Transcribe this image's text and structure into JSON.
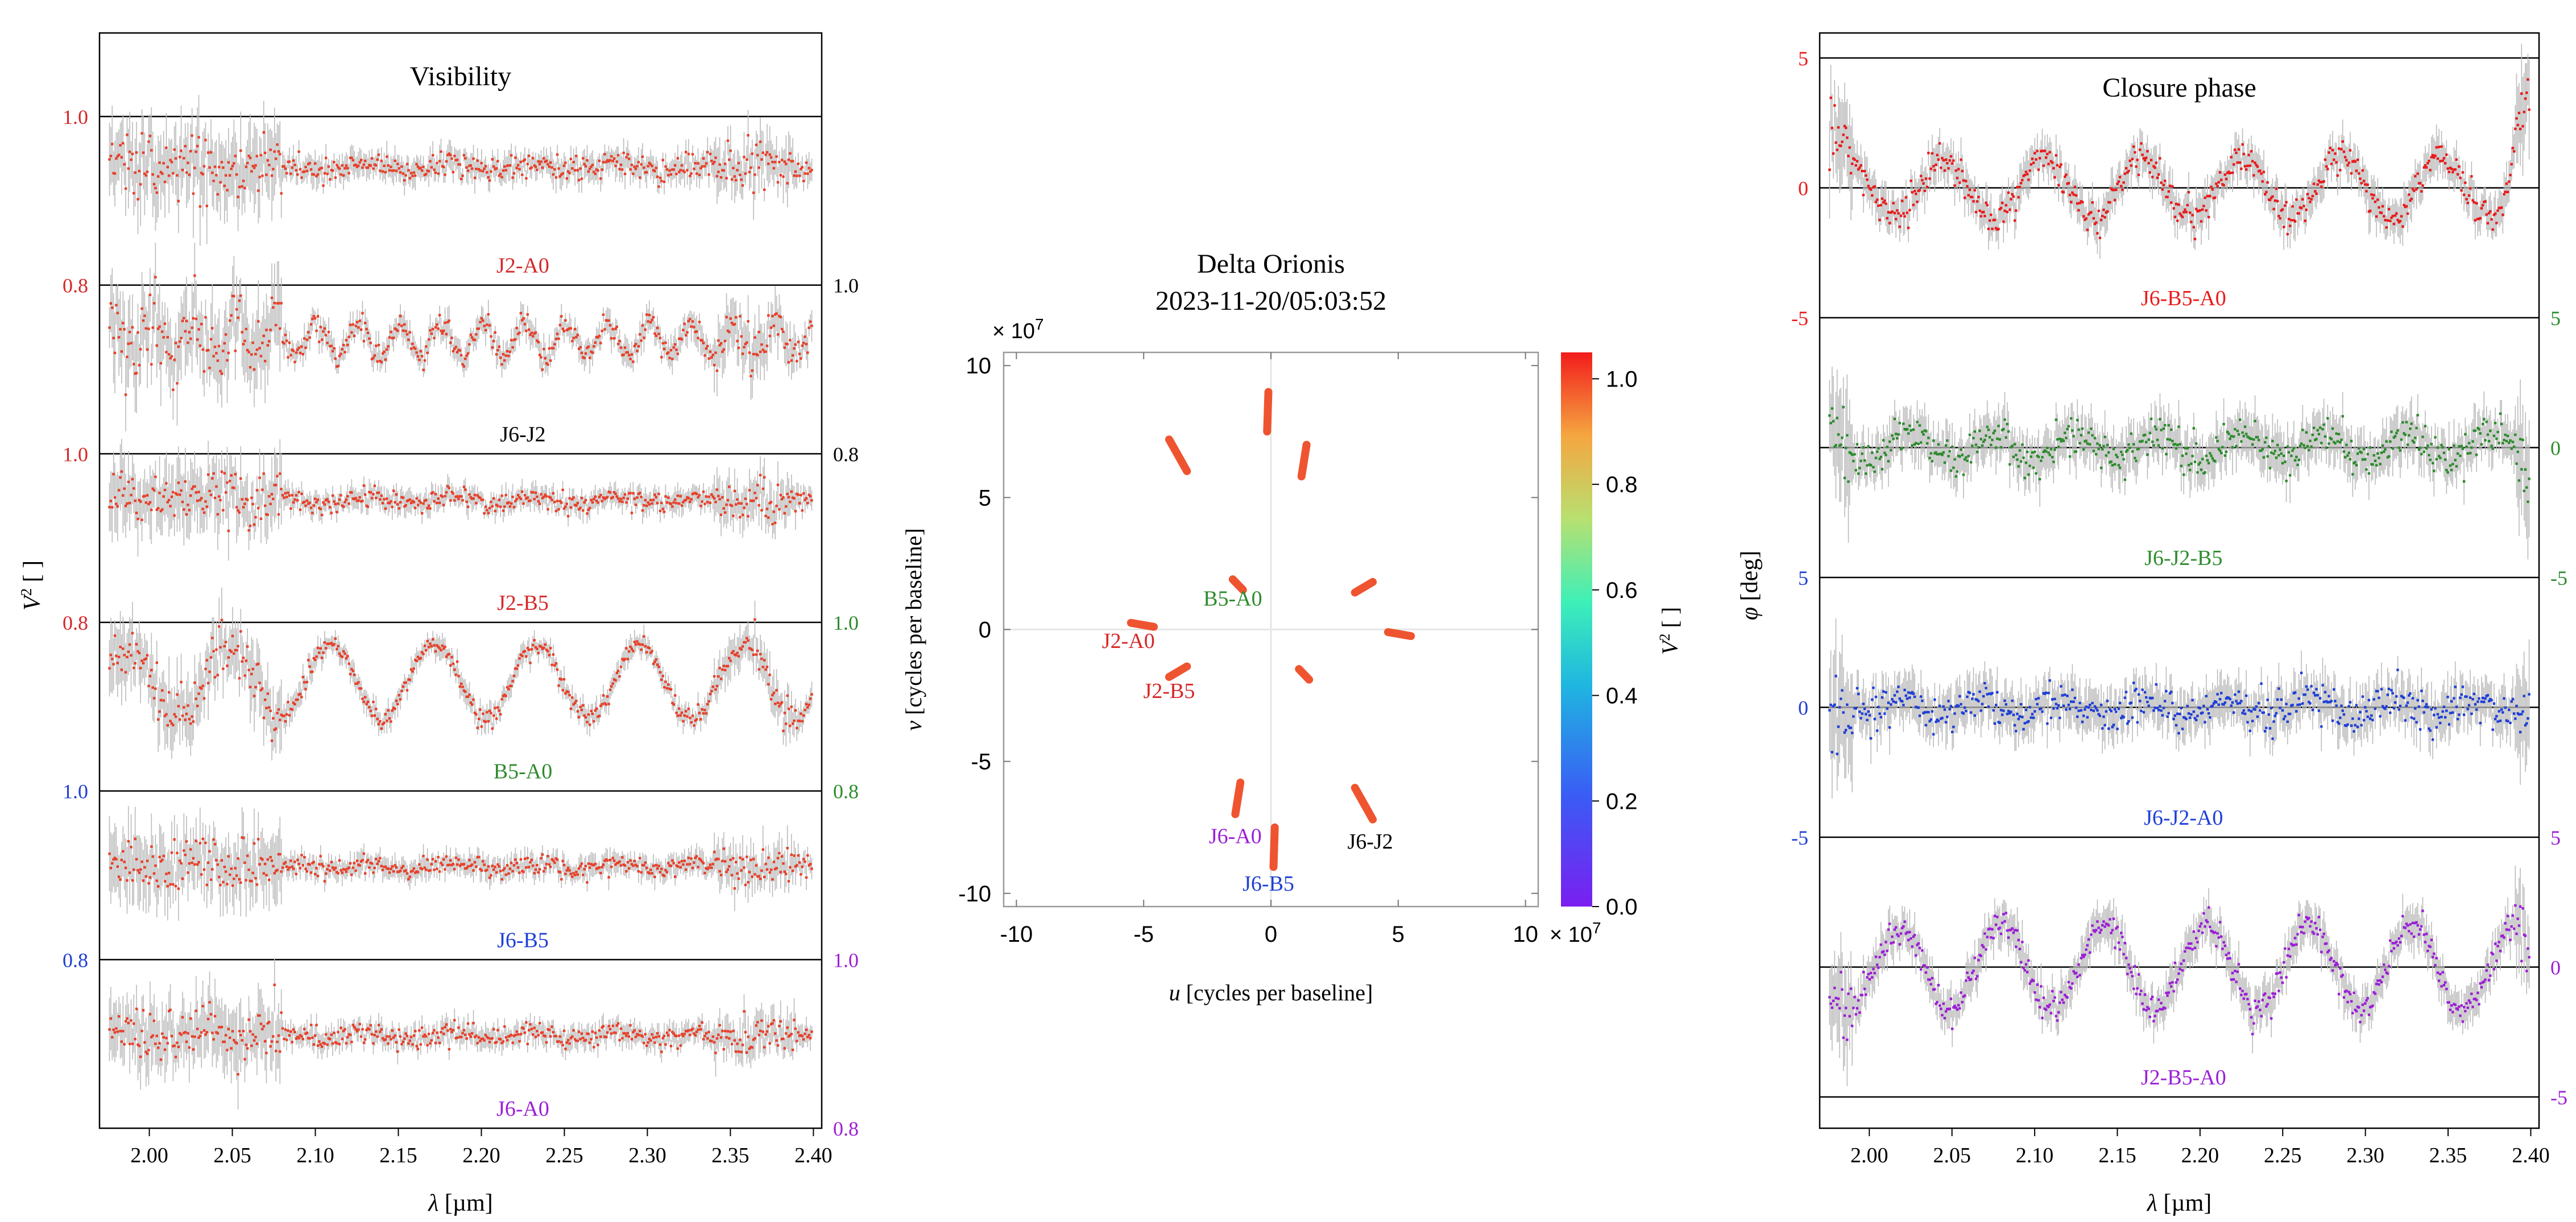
{
  "chart_data": [
    {
      "type": "scatter",
      "title": "Visibility",
      "xlabel_sym": "λ",
      "xlabel_unit": "[µm]",
      "ylabel_sym": "V",
      "ylabel_sup": "2",
      "ylabel_unit": "[ ]",
      "xlim": [
        1.97,
        2.405
      ],
      "x_ticks": [
        "2.00",
        "2.05",
        "2.10",
        "2.15",
        "2.20",
        "2.25",
        "2.30",
        "2.35",
        "2.40"
      ],
      "point_color": "#e8402a",
      "error_color": "#bbbbbb",
      "panels": [
        {
          "baseline": "J2-A0",
          "label_color": "#d62728",
          "tick_side": "left",
          "tick_color": "#d62728",
          "ylim": [
            0.8,
            1.0
          ],
          "ticks": [
            "0.8",
            "1.0"
          ],
          "level": 0.94,
          "noise": 0.012,
          "wiggle_amp": 0.004,
          "wiggle_period": 0.05,
          "blue_noise": 0.04
        },
        {
          "baseline": "J6-J2",
          "label_color": "#000000",
          "tick_side": "right",
          "tick_color": "#000000",
          "ylim": [
            0.8,
            1.0
          ],
          "ticks": [
            "0.8",
            "1.0"
          ],
          "level": 0.935,
          "noise": 0.012,
          "wiggle_amp": 0.02,
          "wiggle_period": 0.025,
          "blue_noise": 0.05
        },
        {
          "baseline": "J2-B5",
          "label_color": "#d62728",
          "tick_side": "left",
          "tick_color": "#d62728",
          "ylim": [
            0.8,
            1.0
          ],
          "ticks": [
            "0.8",
            "1.0"
          ],
          "level": 0.945,
          "noise": 0.01,
          "wiggle_amp": 0.004,
          "wiggle_period": 0.05,
          "blue_noise": 0.05
        },
        {
          "baseline": "B5-A0",
          "label_color": "#2e8b2e",
          "tick_side": "right",
          "tick_color": "#2e8b2e",
          "ylim": [
            0.8,
            1.0
          ],
          "ticks": [
            "0.8",
            "1.0"
          ],
          "level": 0.93,
          "noise": 0.01,
          "wiggle_amp": 0.045,
          "wiggle_period": 0.062,
          "blue_noise": 0.05
        },
        {
          "baseline": "J6-B5",
          "label_color": "#1f3fd6",
          "tick_side": "left",
          "tick_color": "#1f3fd6",
          "ylim": [
            0.8,
            1.0
          ],
          "ticks": [
            "0.8",
            "1.0"
          ],
          "level": 0.91,
          "noise": 0.01,
          "wiggle_amp": 0.004,
          "wiggle_period": 0.05,
          "blue_noise": 0.03
        },
        {
          "baseline": "J6-A0",
          "label_color": "#9b1fd6",
          "tick_side": "right",
          "tick_color": "#9b1fd6",
          "ylim": [
            0.8,
            1.0
          ],
          "ticks": [
            "0.8",
            "1.0"
          ],
          "level": 0.91,
          "noise": 0.01,
          "wiggle_amp": 0.004,
          "wiggle_period": 0.05,
          "blue_noise": 0.04
        }
      ]
    },
    {
      "type": "scatter",
      "title_line1": "Delta Orionis",
      "title_line2": "2023-11-20/05:03:52",
      "xlabel_sym": "u",
      "xlabel_unit": "[cycles per baseline]",
      "ylabel_sym": "v",
      "ylabel_unit": "[cycles per baseline]",
      "xlim": [
        -10.5,
        10.5
      ],
      "ylim": [
        -10.5,
        10.5
      ],
      "ticks": [
        -10,
        -5,
        0,
        5,
        10
      ],
      "x_tick_labels": [
        "-10",
        "-5",
        "0",
        "5",
        "10"
      ],
      "y_tick_labels": [
        "-10",
        "-5",
        "0",
        "5",
        "10"
      ],
      "offset_label": "× 10",
      "offset_exp": "7",
      "colorbar_label_sym": "V",
      "colorbar_label_sup": "2",
      "colorbar_label_unit": "[ ]",
      "colorbar_range": [
        0.0,
        1.05
      ],
      "colorbar_tick_values": [
        0.0,
        0.2,
        0.4,
        0.6,
        0.8,
        1.0
      ],
      "colorbar_ticks": [
        "0.0",
        "0.2",
        "0.4",
        "0.6",
        "0.8",
        "1.0"
      ],
      "track_color": "#ef5430",
      "uv_tracks": [
        {
          "u0": -0.1,
          "v0": 9.0,
          "u1": -0.15,
          "v1": 7.5
        },
        {
          "u0": 0.1,
          "v0": -9.0,
          "u1": 0.15,
          "v1": -7.5
        },
        {
          "u0": 1.4,
          "v0": 7.0,
          "u1": 1.2,
          "v1": 5.8
        },
        {
          "u0": -1.4,
          "v0": -7.0,
          "u1": -1.2,
          "v1": -5.8
        },
        {
          "u0": -4.0,
          "v0": 7.2,
          "u1": -3.3,
          "v1": 6.0
        },
        {
          "u0": 4.0,
          "v0": -7.2,
          "u1": 3.3,
          "v1": -6.0
        },
        {
          "u0": 3.3,
          "v0": 1.4,
          "u1": 4.0,
          "v1": 1.8
        },
        {
          "u0": -3.3,
          "v0": -1.4,
          "u1": -4.0,
          "v1": -1.8
        },
        {
          "u0": 4.6,
          "v0": -0.1,
          "u1": 5.5,
          "v1": -0.25
        },
        {
          "u0": -4.6,
          "v0": 0.1,
          "u1": -5.5,
          "v1": 0.25
        },
        {
          "u0": -1.5,
          "v0": 1.9,
          "u1": -1.1,
          "v1": 1.5
        },
        {
          "u0": 1.5,
          "v0": -1.9,
          "u1": 1.1,
          "v1": -1.5
        }
      ],
      "baseline_labels": [
        {
          "text": "B5-A0",
          "color": "#2e8b2e",
          "u": -1.5,
          "v": 0.9
        },
        {
          "text": "J2-A0",
          "color": "#d62728",
          "u": -5.6,
          "v": -0.7
        },
        {
          "text": "J2-B5",
          "color": "#d62728",
          "u": -4.0,
          "v": -2.6
        },
        {
          "text": "J6-A0",
          "color": "#9b1fd6",
          "u": -1.4,
          "v": -8.1
        },
        {
          "text": "J6-J2",
          "color": "#000000",
          "u": 3.9,
          "v": -8.3
        },
        {
          "text": "J6-B5",
          "color": "#1f3fd6",
          "u": -0.1,
          "v": -9.9
        }
      ]
    },
    {
      "type": "scatter",
      "title": "Closure phase",
      "xlabel_sym": "λ",
      "xlabel_unit": "[µm]",
      "ylabel_sym": "φ",
      "ylabel_unit": "[deg]",
      "xlim": [
        1.97,
        2.405
      ],
      "x_ticks": [
        "2.00",
        "2.05",
        "2.10",
        "2.15",
        "2.20",
        "2.25",
        "2.30",
        "2.35",
        "2.40"
      ],
      "error_color": "#bbbbbb",
      "panels": [
        {
          "triplet": "J6-B5-A0",
          "color": "#e81c1c",
          "tick_side": "left",
          "ylim": [
            -5,
            5
          ],
          "ticks": [
            "-5",
            "0",
            "5"
          ],
          "tick_values": [
            -5,
            0,
            5
          ],
          "wiggle_amp": 1.2,
          "wiggle_period": 0.06,
          "noise": 0.5
        },
        {
          "triplet": "J6-J2-B5",
          "color": "#2e8b2e",
          "tick_side": "right",
          "ylim": [
            -5,
            5
          ],
          "ticks": [
            "-5",
            "0",
            "5"
          ],
          "tick_values": [
            -5,
            0,
            5
          ],
          "wiggle_amp": 0.5,
          "wiggle_period": 0.05,
          "noise": 0.6
        },
        {
          "triplet": "J6-J2-A0",
          "color": "#1f3fd6",
          "tick_side": "left",
          "ylim": [
            -5,
            5
          ],
          "ticks": [
            "-5",
            "0",
            "5"
          ],
          "tick_values": [
            -5,
            0,
            5
          ],
          "wiggle_amp": 0.3,
          "wiggle_period": 0.05,
          "noise": 0.6
        },
        {
          "triplet": "J2-B5-A0",
          "color": "#9b1fd6",
          "tick_side": "right",
          "ylim": [
            -5,
            5
          ],
          "ticks": [
            "-5",
            "0",
            "5"
          ],
          "tick_values": [
            -5,
            0,
            5
          ],
          "wiggle_amp": 1.6,
          "wiggle_period": 0.062,
          "noise": 0.5
        }
      ]
    }
  ]
}
